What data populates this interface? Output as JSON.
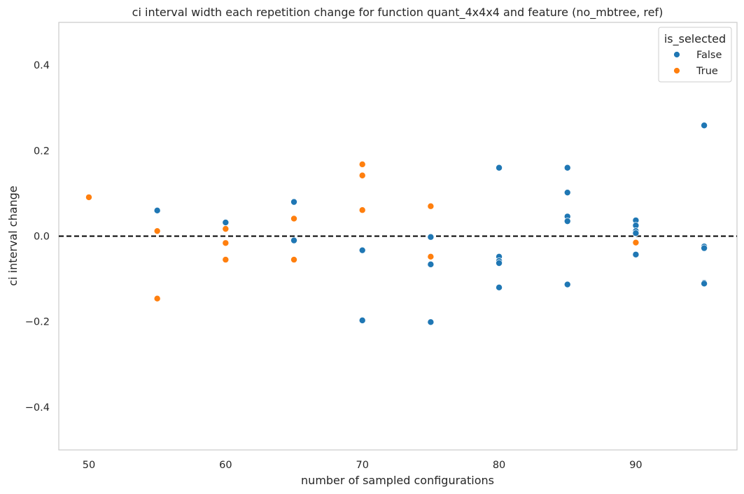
{
  "chart_data": {
    "type": "scatter",
    "title": "ci interval width each repetition change for function quant_4x4x4 and feature (no_mbtree, ref)",
    "xlabel": "number of sampled configurations",
    "ylabel": "ci interval change",
    "xlim": [
      47.8,
      97.4
    ],
    "ylim": [
      -0.5,
      0.5
    ],
    "xticks": [
      50,
      60,
      70,
      80,
      90
    ],
    "yticks": [
      0.4,
      0.2,
      0.0,
      -0.2,
      -0.4
    ],
    "xtick_labels": [
      "50",
      "60",
      "70",
      "80",
      "90"
    ],
    "ytick_labels": [
      "0.4",
      "0.2",
      "0.0",
      "−0.2",
      "−0.4"
    ],
    "reference_line": {
      "y": 0.0,
      "style": "dashed",
      "color": "#000000"
    },
    "grid": false,
    "legend": {
      "title": "is_selected",
      "position": "top-right",
      "entries": [
        {
          "label": "False",
          "color": "#1f77b4"
        },
        {
          "label": "True",
          "color": "#ff7f0e"
        }
      ]
    },
    "series": [
      {
        "name": "False",
        "color": "#1f77b4",
        "points": [
          [
            55,
            0.06
          ],
          [
            60,
            0.032
          ],
          [
            65,
            0.08
          ],
          [
            65,
            -0.01
          ],
          [
            70,
            -0.033
          ],
          [
            70,
            -0.197
          ],
          [
            75,
            -0.002
          ],
          [
            75,
            -0.066
          ],
          [
            75,
            -0.201
          ],
          [
            80,
            0.16
          ],
          [
            80,
            -0.048
          ],
          [
            80,
            -0.058
          ],
          [
            80,
            -0.063
          ],
          [
            80,
            -0.12
          ],
          [
            85,
            0.16
          ],
          [
            85,
            0.102
          ],
          [
            85,
            0.046
          ],
          [
            85,
            0.035
          ],
          [
            85,
            -0.113
          ],
          [
            90,
            0.037
          ],
          [
            90,
            0.025
          ],
          [
            90,
            0.012
          ],
          [
            90,
            0.007
          ],
          [
            90,
            -0.043
          ],
          [
            95,
            0.259
          ],
          [
            95,
            -0.024
          ],
          [
            95,
            -0.028
          ],
          [
            95,
            -0.109
          ],
          [
            95,
            -0.111
          ]
        ]
      },
      {
        "name": "True",
        "color": "#ff7f0e",
        "points": [
          [
            50,
            0.091
          ],
          [
            55,
            0.012
          ],
          [
            55,
            -0.146
          ],
          [
            60,
            0.017
          ],
          [
            60,
            -0.016
          ],
          [
            60,
            -0.055
          ],
          [
            65,
            0.041
          ],
          [
            65,
            -0.055
          ],
          [
            70,
            0.168
          ],
          [
            70,
            0.142
          ],
          [
            70,
            0.061
          ],
          [
            75,
            0.07
          ],
          [
            75,
            -0.048
          ],
          [
            90,
            -0.015
          ]
        ]
      }
    ]
  }
}
